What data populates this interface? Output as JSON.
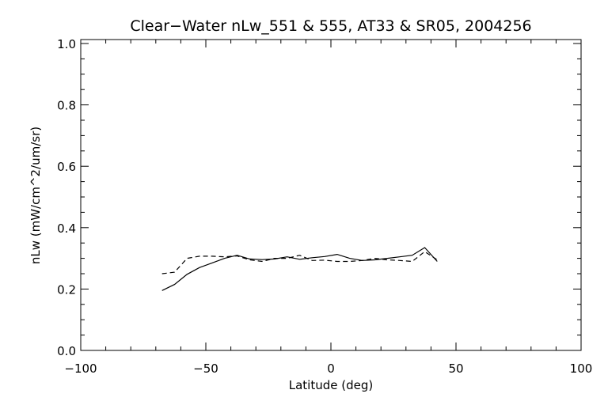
{
  "chart_data": {
    "type": "line",
    "title": "Clear−Water nLw_551 & 555, AT33 & SR05, 2004256",
    "xlabel": "Latitude (deg)",
    "ylabel": "nLw (mW/cm^2/um/sr)",
    "xlim": [
      -100,
      100
    ],
    "ylim": [
      0.0,
      1.0
    ],
    "x_ticks": [
      -100,
      -50,
      0,
      50,
      100
    ],
    "x_tick_labels": [
      "−100",
      "−50",
      "0",
      "50",
      "100"
    ],
    "y_ticks": [
      0.0,
      0.2,
      0.4,
      0.6,
      0.8,
      1.0
    ],
    "y_tick_labels": [
      "0.0",
      "0.2",
      "0.4",
      "0.6",
      "0.8",
      "1.0"
    ],
    "grid": false,
    "legend": "none",
    "series": [
      {
        "style": "solid",
        "color": "#000000",
        "x": [
          -67.5,
          -62.5,
          -57.5,
          -52.5,
          -47.5,
          -42.5,
          -37.5,
          -32.5,
          -27.5,
          -22.5,
          -17.5,
          -12.5,
          -7.5,
          -2.5,
          2.5,
          7.5,
          12.5,
          17.5,
          22.5,
          27.5,
          32.5,
          37.5,
          42.5
        ],
        "y": [
          0.195,
          0.215,
          0.248,
          0.27,
          0.285,
          0.3,
          0.31,
          0.298,
          0.296,
          0.298,
          0.305,
          0.297,
          0.302,
          0.306,
          0.313,
          0.3,
          0.293,
          0.295,
          0.3,
          0.305,
          0.31,
          0.335,
          0.29
        ]
      },
      {
        "style": "dashed",
        "color": "#000000",
        "x": [
          -67.5,
          -62.5,
          -57.5,
          -52.5,
          -47.5,
          -42.5,
          -37.5,
          -32.5,
          -27.5,
          -22.5,
          -17.5,
          -12.5,
          -7.5,
          -2.5,
          2.5,
          7.5,
          12.5,
          17.5,
          22.5,
          27.5,
          32.5,
          37.5,
          42.5
        ],
        "y": [
          0.25,
          0.255,
          0.3,
          0.307,
          0.307,
          0.305,
          0.308,
          0.295,
          0.29,
          0.3,
          0.3,
          0.31,
          0.293,
          0.294,
          0.29,
          0.29,
          0.293,
          0.3,
          0.295,
          0.293,
          0.29,
          0.322,
          0.295
        ]
      }
    ]
  }
}
